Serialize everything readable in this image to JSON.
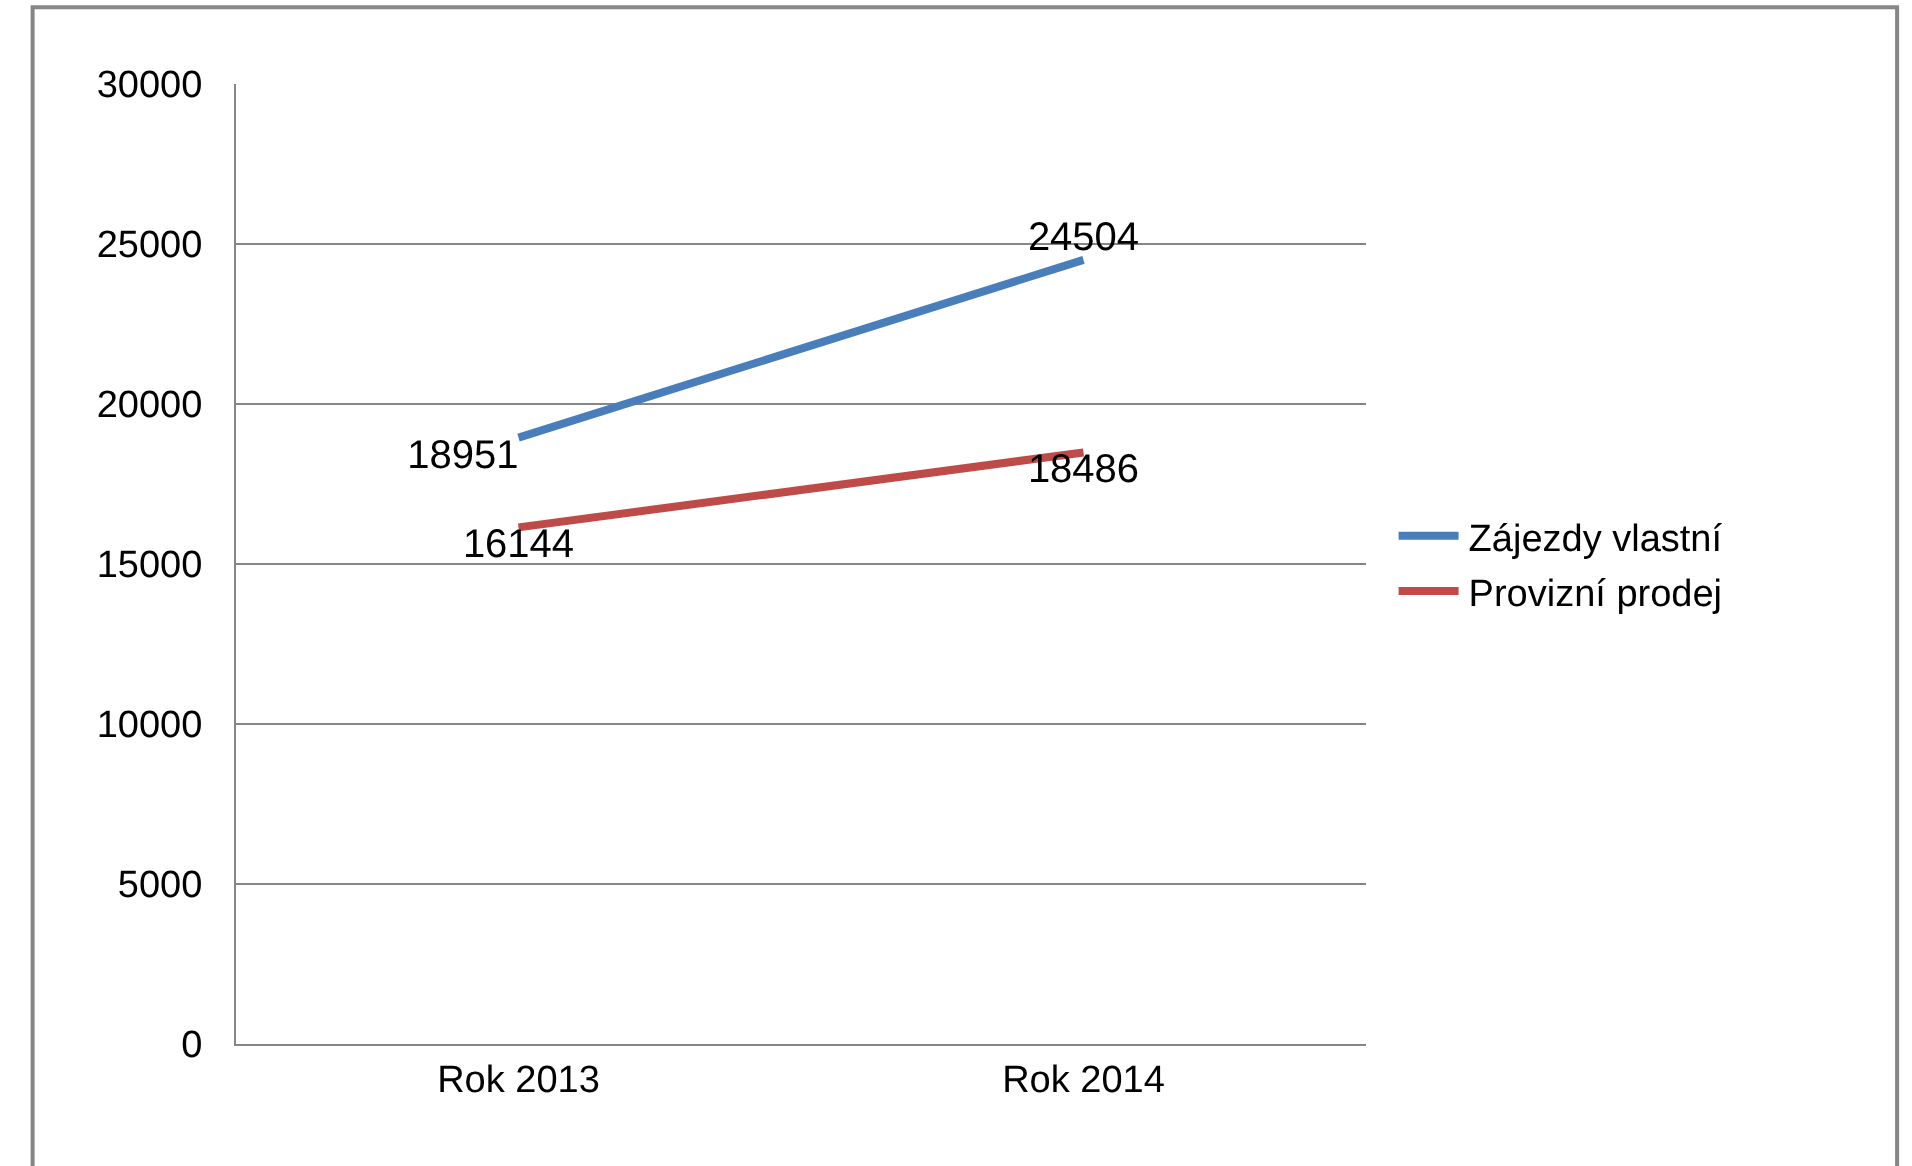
{
  "chart_data": {
    "type": "line",
    "categories": [
      "Rok 2013",
      "Rok 2014"
    ],
    "series": [
      {
        "name": "Zájezdy vlastní",
        "color": "#4a7ebb",
        "values": [
          18951,
          24504
        ]
      },
      {
        "name": "Provizní prodej",
        "color": "#be4b48",
        "values": [
          16144,
          18486
        ]
      }
    ],
    "ylim": [
      0,
      30000
    ],
    "yticks": [
      0,
      5000,
      10000,
      15000,
      20000,
      25000,
      30000
    ],
    "grid": "y",
    "legend": "right",
    "data_labels": true,
    "marker": "none",
    "line_style": "solid"
  }
}
